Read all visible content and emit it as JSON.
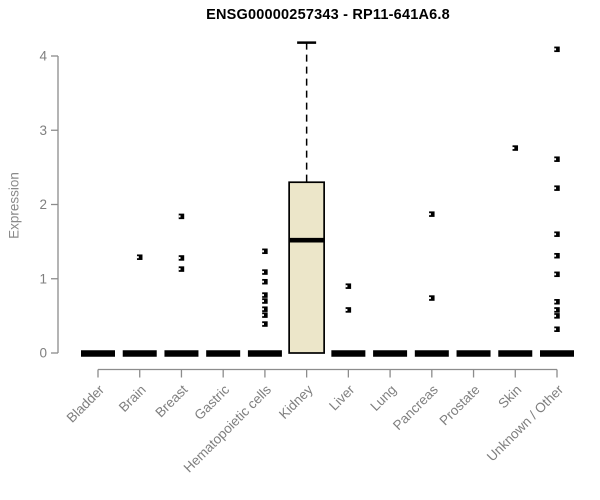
{
  "chart_data": {
    "type": "boxplot",
    "title": "ENSG00000257343 - RP11-641A6.8",
    "ylabel": "Expression",
    "xlabel": "",
    "ylim": [
      0,
      4.2
    ],
    "yticks": [
      0,
      1,
      2,
      3,
      4
    ],
    "grid": false,
    "legend": "none",
    "x_tick_rotation": 45,
    "categories": [
      "Bladder",
      "Brain",
      "Breast",
      "Gastric",
      "Hematopoietic cells",
      "Kidney",
      "Liver",
      "Lung",
      "Pancreas",
      "Prostate",
      "Skin",
      "Unknown / Other"
    ],
    "boxes": [
      {
        "category": "Bladder",
        "min": 0,
        "q1": 0,
        "median": 0,
        "q3": 0,
        "max": 0,
        "outliers": []
      },
      {
        "category": "Brain",
        "min": 0,
        "q1": 0,
        "median": 0,
        "q3": 0,
        "max": 0,
        "outliers": [
          1.29
        ]
      },
      {
        "category": "Breast",
        "min": 0,
        "q1": 0,
        "median": 0,
        "q3": 0,
        "max": 0,
        "outliers": [
          1.84,
          1.28,
          1.13
        ]
      },
      {
        "category": "Gastric",
        "min": 0,
        "q1": 0,
        "median": 0,
        "q3": 0,
        "max": 0,
        "outliers": []
      },
      {
        "category": "Hematopoietic cells",
        "min": 0,
        "q1": 0,
        "median": 0,
        "q3": 0,
        "max": 0,
        "outliers": [
          1.37,
          1.09,
          0.96,
          0.78,
          0.7,
          0.59,
          0.51,
          0.39
        ]
      },
      {
        "category": "Kidney",
        "min": 0,
        "q1": 0,
        "median": 1.52,
        "q3": 2.3,
        "max": 4.18,
        "outliers": []
      },
      {
        "category": "Liver",
        "min": 0,
        "q1": 0,
        "median": 0,
        "q3": 0,
        "max": 0,
        "outliers": [
          0.9,
          0.58
        ]
      },
      {
        "category": "Lung",
        "min": 0,
        "q1": 0,
        "median": 0,
        "q3": 0,
        "max": 0,
        "outliers": []
      },
      {
        "category": "Pancreas",
        "min": 0,
        "q1": 0,
        "median": 0,
        "q3": 0,
        "max": 0,
        "outliers": [
          1.87,
          0.74
        ]
      },
      {
        "category": "Prostate",
        "min": 0,
        "q1": 0,
        "median": 0,
        "q3": 0,
        "max": 0,
        "outliers": []
      },
      {
        "category": "Skin",
        "min": 0,
        "q1": 0,
        "median": 0,
        "q3": 0,
        "max": 0,
        "outliers": [
          2.76
        ]
      },
      {
        "category": "Unknown / Other",
        "min": 0,
        "q1": 0,
        "median": 0,
        "q3": 0,
        "max": 0,
        "outliers": [
          4.09,
          2.61,
          2.22,
          1.6,
          1.31,
          1.06,
          0.69,
          0.58,
          0.5,
          0.32
        ]
      }
    ],
    "colors": {
      "box_fill": "#ece6c9",
      "box_border": "#000000",
      "median": "#000000",
      "whisker": "#000000",
      "point": "#000000",
      "point_notch": "#ffffff",
      "zero_bar": "#000000",
      "axis": "#8c8c8c",
      "tick_label": "#7f7f7f",
      "title_color": "#000000",
      "ylabel_color": "#8a8a8a",
      "background": "#ffffff"
    }
  }
}
